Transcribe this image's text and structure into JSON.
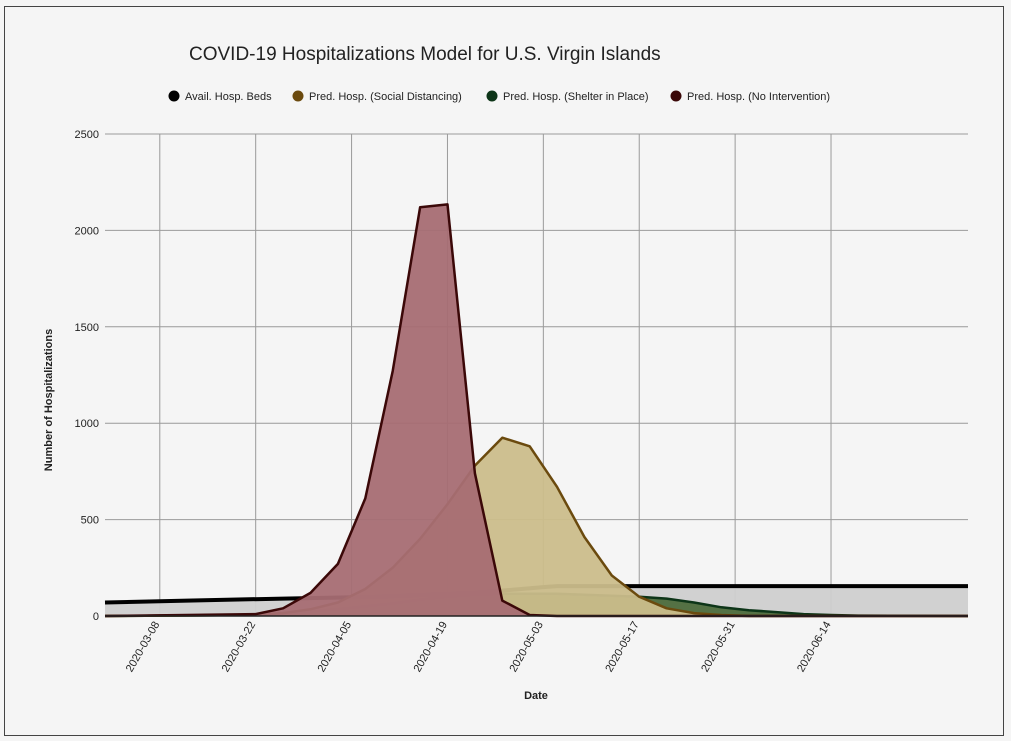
{
  "chart_data": {
    "type": "area",
    "title": "COVID-19 Hospitalizations Model for U.S. Virgin Islands",
    "xlabel": "Date",
    "ylabel": "Number of Hospitalizations",
    "ylim": [
      0,
      2500
    ],
    "yticks": [
      0,
      500,
      1000,
      1500,
      2000,
      2500
    ],
    "xlim": [
      "2020-02-29",
      "2020-07-04"
    ],
    "xticks": [
      "2020-03-08",
      "2020-03-22",
      "2020-04-05",
      "2020-04-19",
      "2020-05-03",
      "2020-05-17",
      "2020-05-31",
      "2020-06-14"
    ],
    "grid": true,
    "legend_position": "top",
    "series": [
      {
        "name": "Avail. Hosp. Beds",
        "fill": "#cfcfcf",
        "line": "#000000",
        "points": [
          [
            "2020-02-29",
            70
          ],
          [
            "2020-03-12",
            80
          ],
          [
            "2020-03-26",
            90
          ],
          [
            "2020-04-09",
            100
          ],
          [
            "2020-04-23",
            120
          ],
          [
            "2020-05-03",
            150
          ],
          [
            "2020-05-05",
            155
          ],
          [
            "2020-07-04",
            155
          ]
        ]
      },
      {
        "name": "Pred. Hosp. (Shelter in Place)",
        "fill": "#4d6b3c",
        "line": "#0d3518",
        "points": [
          [
            "2020-02-29",
            0
          ],
          [
            "2020-03-22",
            5
          ],
          [
            "2020-03-26",
            15
          ],
          [
            "2020-03-30",
            25
          ],
          [
            "2020-04-03",
            35
          ],
          [
            "2020-04-07",
            50
          ],
          [
            "2020-04-11",
            65
          ],
          [
            "2020-04-15",
            85
          ],
          [
            "2020-04-19",
            100
          ],
          [
            "2020-04-23",
            110
          ],
          [
            "2020-04-27",
            115
          ],
          [
            "2020-05-01",
            115
          ],
          [
            "2020-05-05",
            115
          ],
          [
            "2020-05-09",
            110
          ],
          [
            "2020-05-13",
            105
          ],
          [
            "2020-05-17",
            100
          ],
          [
            "2020-05-21",
            90
          ],
          [
            "2020-05-25",
            70
          ],
          [
            "2020-05-29",
            45
          ],
          [
            "2020-06-02",
            30
          ],
          [
            "2020-06-06",
            20
          ],
          [
            "2020-06-10",
            10
          ],
          [
            "2020-06-14",
            5
          ],
          [
            "2020-06-18",
            2
          ],
          [
            "2020-07-04",
            0
          ]
        ]
      },
      {
        "name": "Pred. Hosp. (Social Distancing)",
        "fill": "#cbbd8b",
        "line": "#6b4a0e",
        "points": [
          [
            "2020-02-29",
            0
          ],
          [
            "2020-03-22",
            5
          ],
          [
            "2020-03-26",
            15
          ],
          [
            "2020-03-30",
            35
          ],
          [
            "2020-04-03",
            70
          ],
          [
            "2020-04-07",
            140
          ],
          [
            "2020-04-11",
            250
          ],
          [
            "2020-04-15",
            400
          ],
          [
            "2020-04-19",
            580
          ],
          [
            "2020-04-23",
            780
          ],
          [
            "2020-04-27",
            925
          ],
          [
            "2020-05-01",
            880
          ],
          [
            "2020-05-05",
            670
          ],
          [
            "2020-05-09",
            410
          ],
          [
            "2020-05-13",
            210
          ],
          [
            "2020-05-17",
            100
          ],
          [
            "2020-05-21",
            40
          ],
          [
            "2020-05-25",
            15
          ],
          [
            "2020-05-29",
            5
          ],
          [
            "2020-06-02",
            0
          ],
          [
            "2020-07-04",
            0
          ]
        ]
      },
      {
        "name": "Pred. Hosp. (No Intervention)",
        "fill": "#a66d73",
        "line": "#3b0808",
        "points": [
          [
            "2020-02-29",
            0
          ],
          [
            "2020-03-22",
            10
          ],
          [
            "2020-03-26",
            40
          ],
          [
            "2020-03-30",
            120
          ],
          [
            "2020-04-03",
            270
          ],
          [
            "2020-04-07",
            610
          ],
          [
            "2020-04-11",
            1270
          ],
          [
            "2020-04-15",
            2120
          ],
          [
            "2020-04-19",
            2135
          ],
          [
            "2020-04-23",
            740
          ],
          [
            "2020-04-27",
            80
          ],
          [
            "2020-05-01",
            5
          ],
          [
            "2020-05-05",
            0
          ],
          [
            "2020-07-04",
            0
          ]
        ]
      }
    ]
  }
}
